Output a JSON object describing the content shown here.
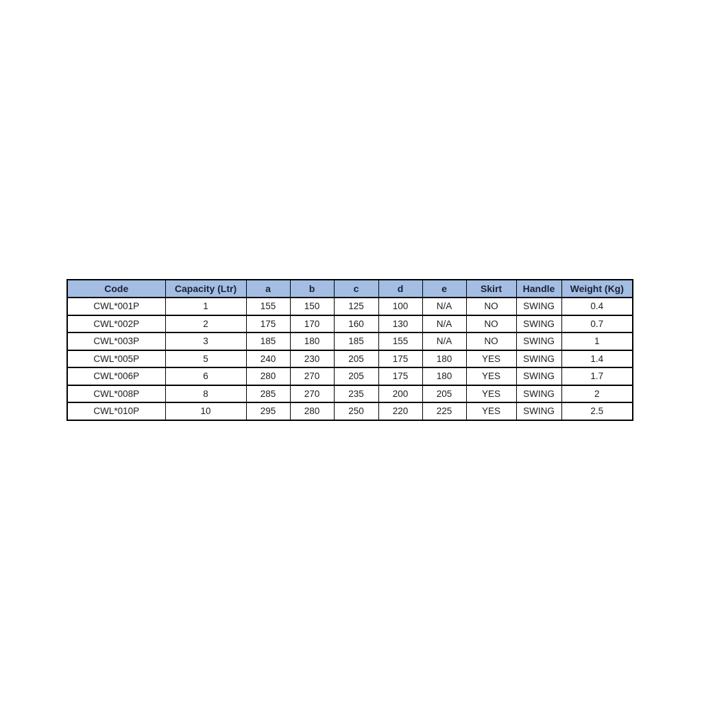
{
  "table": {
    "headers": [
      "Code",
      "Capacity (Ltr)",
      "a",
      "b",
      "c",
      "d",
      "e",
      "Skirt",
      "Handle",
      "Weight (Kg)"
    ],
    "rows": [
      [
        "CWL*001P",
        "1",
        "155",
        "150",
        "125",
        "100",
        "N/A",
        "NO",
        "SWING",
        "0.4"
      ],
      [
        "CWL*002P",
        "2",
        "175",
        "170",
        "160",
        "130",
        "N/A",
        "NO",
        "SWING",
        "0.7"
      ],
      [
        "CWL*003P",
        "3",
        "185",
        "180",
        "185",
        "155",
        "N/A",
        "NO",
        "SWING",
        "1"
      ],
      [
        "CWL*005P",
        "5",
        "240",
        "230",
        "205",
        "175",
        "180",
        "YES",
        "SWING",
        "1.4"
      ],
      [
        "CWL*006P",
        "6",
        "280",
        "270",
        "205",
        "175",
        "180",
        "YES",
        "SWING",
        "1.7"
      ],
      [
        "CWL*008P",
        "8",
        "285",
        "270",
        "235",
        "200",
        "205",
        "YES",
        "SWING",
        "2"
      ],
      [
        "CWL*010P",
        "10",
        "295",
        "280",
        "250",
        "220",
        "225",
        "YES",
        "SWING",
        "2.5"
      ]
    ]
  },
  "colors": {
    "header_bg": "#a3bde3",
    "header_text": "#1a2133",
    "cell_text": "#1c1c1c",
    "border": "#000000",
    "row_bg": "#ffffff",
    "page_bg": "#ffffff"
  }
}
